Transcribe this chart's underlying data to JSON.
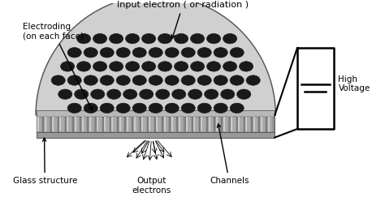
{
  "bg_color": "#ffffff",
  "text_color": "#000000",
  "labels": {
    "electroding": "Electroding\n(on each face)",
    "input_electron": "Input electron ( or radiation )",
    "glass_structure": "Glass structure",
    "output_electrons": "Output\nelectrons",
    "channels": "Channels",
    "high_voltage": "High\nVoltage"
  },
  "plate_color": "#d0d0d0",
  "dome_edge": "#555555",
  "channel_color": "#1a1a1a",
  "electrode_top_color": "#b8b8b8",
  "electrode_bot_color": "#999999",
  "cylinder_color": "#aaaaaa",
  "cylinder_light": "#cccccc",
  "cylinder_dark": "#888888"
}
